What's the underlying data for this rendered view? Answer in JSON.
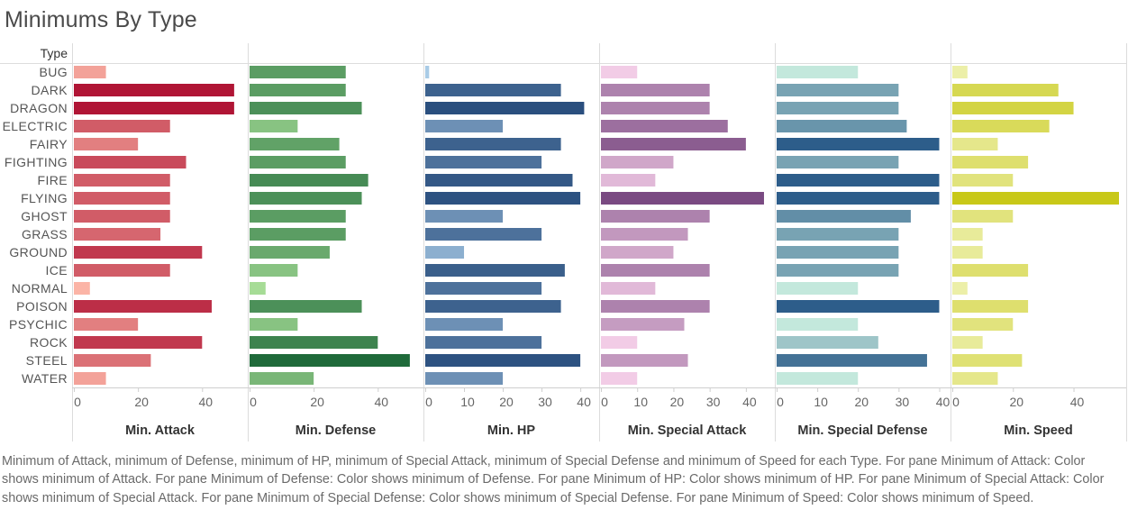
{
  "title": "Minimums By Type",
  "row_header": "Type",
  "caption": "Minimum of Attack, minimum of Defense, minimum of HP, minimum of Special Attack, minimum of Special Defense and minimum of Speed for each Type.  For pane Minimum of Attack:  Color shows minimum of Attack.  For pane Minimum of Defense:  Color shows minimum of Defense.  For pane Minimum of HP:  Color shows minimum of HP.  For pane Minimum of Special Attack:  Color shows minimum of Special Attack.  For pane Minimum of Special Defense:  Color shows minimum of Special Defense.  For pane Minimum of Speed:  Color shows minimum of Speed.",
  "chart_data": {
    "type": "bar",
    "orientation": "horizontal",
    "categories": [
      "BUG",
      "DARK",
      "DRAGON",
      "ELECTRIC",
      "FAIRY",
      "FIGHTING",
      "FIRE",
      "FLYING",
      "GHOST",
      "GRASS",
      "GROUND",
      "ICE",
      "NORMAL",
      "POISON",
      "PSYCHIC",
      "ROCK",
      "STEEL",
      "WATER"
    ],
    "grid": false,
    "panes": [
      {
        "name": "Min. Attack",
        "xlim": [
          0,
          52
        ],
        "ticks": [
          0,
          20,
          40
        ],
        "color_low": "#fbb4a6",
        "color_high": "#b01535",
        "values": [
          10,
          50,
          50,
          30,
          20,
          35,
          30,
          30,
          30,
          27,
          40,
          30,
          5,
          43,
          20,
          40,
          24,
          10
        ]
      },
      {
        "name": "Min. Defense",
        "xlim": [
          0,
          52
        ],
        "ticks": [
          0,
          20,
          40
        ],
        "color_low": "#a6dc96",
        "color_high": "#1f6a3a",
        "values": [
          30,
          30,
          35,
          15,
          28,
          30,
          37,
          35,
          30,
          30,
          25,
          15,
          5,
          35,
          15,
          40,
          50,
          20
        ]
      },
      {
        "name": "Min. HP",
        "xlim": [
          0,
          43
        ],
        "ticks": [
          0,
          10,
          20,
          30,
          40
        ],
        "color_low": "#a9cbe6",
        "color_high": "#2a4f7e",
        "values": [
          1,
          35,
          41,
          20,
          35,
          30,
          38,
          40,
          20,
          30,
          10,
          36,
          30,
          35,
          20,
          30,
          40,
          20
        ]
      },
      {
        "name": "Min. Special Attack",
        "xlim": [
          0,
          46
        ],
        "ticks": [
          0,
          10,
          20,
          30,
          40
        ],
        "color_low": "#f2cce6",
        "color_high": "#7a4a82",
        "values": [
          10,
          30,
          30,
          35,
          40,
          20,
          15,
          45,
          30,
          24,
          20,
          30,
          15,
          30,
          23,
          10,
          24,
          10
        ]
      },
      {
        "name": "Min. Special Defense",
        "xlim": [
          0,
          41
        ],
        "ticks": [
          0,
          10,
          20,
          30,
          40
        ],
        "color_low": "#c3e8dc",
        "color_high": "#2d5d8a",
        "values": [
          20,
          30,
          30,
          32,
          40,
          30,
          40,
          40,
          33,
          30,
          30,
          30,
          20,
          40,
          20,
          25,
          37,
          20
        ]
      },
      {
        "name": "Min. Speed",
        "xlim": [
          0,
          55
        ],
        "ticks": [
          0,
          20,
          40
        ],
        "color_low": "#ecefa8",
        "color_high": "#c8c818",
        "values": [
          5,
          35,
          40,
          32,
          15,
          25,
          20,
          55,
          20,
          10,
          10,
          25,
          5,
          25,
          20,
          10,
          23,
          15
        ]
      }
    ]
  }
}
